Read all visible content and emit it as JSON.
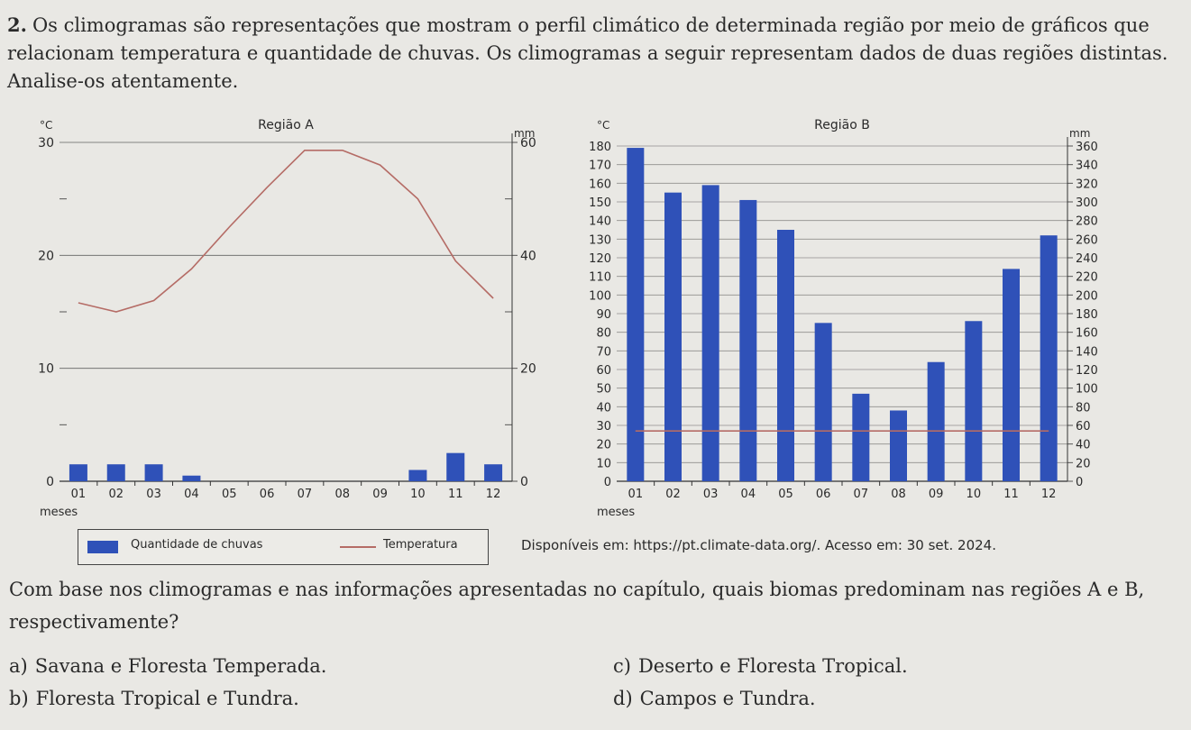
{
  "question": {
    "number": "2.",
    "intro": "Os climogramas são representações que mostram o perfil climático de determinada região por meio de gráficos que relacionam temperatura e quantidade de chuvas. Os climogramas a seguir representam dados de duas regiões distintas. Analise-os atentamente.",
    "prompt": "Com base nos climogramas e nas informações apresentadas no capítulo, quais biomas predominam nas regiões A e B, respectivamente?",
    "options": [
      {
        "letter": "a)",
        "text": "Savana e Floresta Temperada."
      },
      {
        "letter": "b)",
        "text": "Floresta Tropical e Tundra."
      },
      {
        "letter": "c)",
        "text": "Deserto e Floresta Tropical."
      },
      {
        "letter": "d)",
        "text": "Campos e Tundra."
      }
    ]
  },
  "legend": {
    "rain": "Quantidade de chuvas",
    "temp": "Temperatura"
  },
  "source": "Disponíveis em: https://pt.climate-data.org/. Acesso em: 30 set. 2024.",
  "colors": {
    "bar": "#2f51b8",
    "temperature_line": "#b56c66",
    "grid": "#555555"
  },
  "chart_data": [
    {
      "type": "bar",
      "title": "Região A",
      "xlabel": "meses",
      "ylabel_left": "°C",
      "ylabel_right": "mm",
      "categories": [
        "01",
        "02",
        "03",
        "04",
        "05",
        "06",
        "07",
        "08",
        "09",
        "10",
        "11",
        "12"
      ],
      "yticks_left": [
        0,
        10,
        20,
        30
      ],
      "yticks_right": [
        0,
        20,
        40,
        60
      ],
      "ylim_left": [
        0,
        30
      ],
      "ylim_right": [
        0,
        60
      ],
      "series": [
        {
          "name": "Quantidade de chuvas",
          "kind": "bar",
          "axis": "right",
          "values": [
            3,
            3,
            3,
            1,
            0,
            0,
            0,
            0,
            0,
            2,
            5,
            3
          ]
        },
        {
          "name": "Temperatura",
          "kind": "line",
          "axis": "left",
          "values": [
            15.8,
            15.0,
            16.0,
            18.8,
            22.5,
            26.0,
            29.3,
            29.3,
            28.0,
            25.0,
            19.5,
            16.2
          ]
        }
      ],
      "grid": true
    },
    {
      "type": "bar",
      "title": "Região B",
      "xlabel": "meses",
      "ylabel_left": "°C",
      "ylabel_right": "mm",
      "categories": [
        "01",
        "02",
        "03",
        "04",
        "05",
        "06",
        "07",
        "08",
        "09",
        "10",
        "11",
        "12"
      ],
      "yticks_left": [
        0,
        10,
        20,
        30,
        40,
        50,
        60,
        70,
        80,
        90,
        100,
        110,
        120,
        130,
        140,
        150,
        160,
        170,
        180
      ],
      "yticks_right": [
        0,
        20,
        40,
        60,
        80,
        100,
        120,
        140,
        160,
        180,
        200,
        220,
        240,
        260,
        280,
        300,
        320,
        340,
        360
      ],
      "ylim_left": [
        0,
        180
      ],
      "ylim_right": [
        0,
        360
      ],
      "series": [
        {
          "name": "Quantidade de chuvas",
          "kind": "bar",
          "axis": "right",
          "values": [
            358,
            310,
            318,
            302,
            270,
            170,
            94,
            76,
            128,
            172,
            228,
            264
          ]
        },
        {
          "name": "Temperatura",
          "kind": "line",
          "axis": "left",
          "values": [
            27,
            27,
            27,
            27,
            27,
            27,
            27,
            27,
            27,
            27,
            27,
            27
          ]
        }
      ],
      "grid": true
    }
  ]
}
